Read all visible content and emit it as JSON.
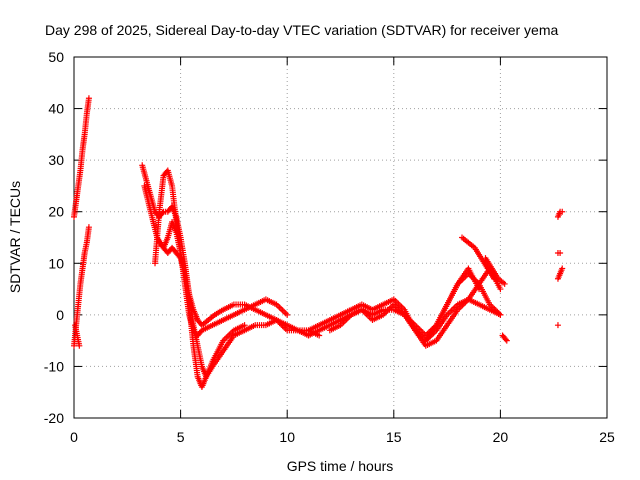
{
  "chart_data": {
    "type": "scatter",
    "title": "Day 298 of 2025, Sidereal Day-to-day VTEC variation (SDTVAR) for receiver yema",
    "xlabel": "GPS time / hours",
    "ylabel": "SDTVAR / TECUs",
    "xlim": [
      0,
      25
    ],
    "ylim": [
      -20,
      50
    ],
    "xticks": [
      0,
      5,
      10,
      15,
      20,
      25
    ],
    "yticks": [
      -20,
      -10,
      0,
      10,
      20,
      30,
      40,
      50
    ],
    "grid": true,
    "marker": "+",
    "series": [
      {
        "name": "SDTVAR",
        "color": "#ff0000",
        "tracks": [
          {
            "x": [
              0.0,
              0.1,
              0.2,
              0.3,
              0.4,
              0.5,
              0.6,
              0.7
            ],
            "y": [
              19,
              22,
              25,
              28,
              32,
              35,
              39,
              42
            ]
          },
          {
            "x": [
              0.0,
              0.1,
              0.2,
              0.3,
              0.4,
              0.5,
              0.6,
              0.7
            ],
            "y": [
              -6,
              -2,
              2,
              6,
              9,
              12,
              14,
              17
            ]
          },
          {
            "x": [
              0.05,
              0.15,
              0.25
            ],
            "y": [
              -2,
              -4,
              -6
            ]
          },
          {
            "x": [
              3.2,
              3.4,
              3.6,
              3.8,
              4.0,
              4.2,
              4.4,
              4.6,
              4.8,
              5.0,
              5.2,
              5.4,
              5.6,
              5.8,
              6.0,
              6.2,
              6.5,
              7.0,
              7.5,
              8.0,
              8.5,
              9.0,
              9.5,
              10.0,
              10.5,
              11.0
            ],
            "y": [
              29,
              26,
              23,
              20,
              19,
              20,
              20,
              21,
              19,
              15,
              10,
              4,
              -2,
              -6,
              -10,
              -12,
              -10,
              -7,
              -4,
              -3,
              -2,
              -2,
              -1,
              -3,
              -3,
              -4
            ]
          },
          {
            "x": [
              3.3,
              3.6,
              3.9,
              4.2,
              4.4,
              4.6,
              4.8,
              5.0,
              5.2,
              5.4,
              5.6,
              5.8,
              6.0,
              6.2,
              6.5,
              7.0,
              7.5,
              8.0
            ],
            "y": [
              25,
              20,
              15,
              13,
              12,
              13,
              12,
              11,
              8,
              2,
              -6,
              -12,
              -14,
              -12,
              -9,
              -5,
              -3,
              -2
            ]
          },
          {
            "x": [
              3.8,
              4.0,
              4.2,
              4.4,
              4.6,
              4.8,
              5.0,
              5.2,
              5.4,
              5.6,
              5.8,
              6.0,
              6.3,
              6.6,
              7.0,
              7.5,
              8.0,
              8.5,
              9.0,
              9.5,
              10.0,
              10.5,
              11.0,
              11.5
            ],
            "y": [
              10,
              20,
              27,
              28,
              25,
              18,
              12,
              8,
              4,
              1,
              -1,
              -2,
              -1,
              0,
              1,
              2,
              2,
              1,
              0,
              -1,
              -2,
              -3,
              -3,
              -4
            ]
          },
          {
            "x": [
              4.0,
              4.2,
              4.4,
              4.6,
              4.8,
              5.0,
              5.2,
              5.4,
              5.6,
              5.8,
              6.0,
              6.5,
              7.0,
              7.5,
              8.0,
              8.5,
              9.0,
              9.5,
              10.0
            ],
            "y": [
              14,
              13,
              15,
              18,
              16,
              12,
              6,
              0,
              -3,
              -4,
              -3,
              -2,
              -1,
              0,
              1,
              2,
              3,
              2,
              0
            ]
          },
          {
            "x": [
              11.0,
              11.5,
              12.0,
              12.5,
              13.0,
              13.5,
              14.0,
              14.5,
              15.0,
              15.5,
              16.0,
              16.5,
              17.0,
              17.5,
              18.0,
              18.5,
              19.0,
              19.5,
              20.0
            ],
            "y": [
              -3,
              -2,
              -1,
              0,
              1,
              2,
              1,
              2,
              3,
              1,
              -3,
              -5,
              -3,
              0,
              2,
              3,
              2,
              1,
              0
            ]
          },
          {
            "x": [
              11.0,
              11.5,
              12.0,
              12.5,
              13.0,
              13.5,
              14.0,
              14.5,
              15.0,
              15.5,
              16.0,
              16.5,
              17.0,
              17.5,
              18.0,
              18.5,
              19.0
            ],
            "y": [
              -4,
              -3,
              -2,
              -1,
              0,
              1,
              0,
              1,
              1,
              0,
              -2,
              -4,
              -2,
              2,
              6,
              9,
              5
            ]
          },
          {
            "x": [
              12.0,
              12.5,
              13.0,
              13.5,
              14.0,
              14.5,
              15.0,
              15.5,
              16.0,
              16.5,
              17.0,
              17.5,
              18.0,
              18.5,
              19.0,
              19.5,
              20.0
            ],
            "y": [
              -3,
              -2,
              0,
              1,
              -1,
              0,
              2,
              0,
              -3,
              -6,
              -5,
              -2,
              1,
              3,
              6,
              9,
              5
            ]
          },
          {
            "x": [
              16.5,
              17.0,
              17.5,
              18.0,
              18.5,
              19.0,
              19.5,
              20.0
            ],
            "y": [
              -5,
              -2,
              2,
              6,
              8,
              6,
              2,
              0
            ]
          },
          {
            "x": [
              18.2,
              18.5,
              18.8,
              19.1,
              19.4,
              19.7
            ],
            "y": [
              15,
              14,
              13,
              11,
              9,
              7
            ]
          },
          {
            "x": [
              19.3,
              19.6,
              19.9,
              20.2
            ],
            "y": [
              11,
              9,
              7,
              6
            ]
          },
          {
            "x": [
              20.1,
              20.3
            ],
            "y": [
              -4,
              -5
            ]
          },
          {
            "x": [
              22.7,
              22.8,
              22.9
            ],
            "y": [
              19,
              20,
              20
            ]
          },
          {
            "x": [
              22.7,
              22.8
            ],
            "y": [
              12,
              12
            ]
          },
          {
            "x": [
              22.7,
              22.8,
              22.9
            ],
            "y": [
              7,
              8,
              9
            ]
          },
          {
            "x": [
              22.7
            ],
            "y": [
              -2
            ]
          }
        ]
      }
    ]
  }
}
